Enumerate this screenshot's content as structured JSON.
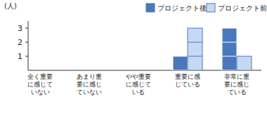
{
  "chart_data": {
    "type": "bar",
    "y_label": "(人)",
    "categories": [
      "全く重要に感じていない",
      "あまり重要に感じていない",
      "やや重要に感じている",
      "重要に感じている",
      "非常に重要に感じている"
    ],
    "series": [
      {
        "name": "プロジェクト後",
        "color": "#4a78bd",
        "values": [
          0,
          0,
          0,
          1,
          3
        ]
      },
      {
        "name": "プロジェクト前",
        "color": "#c5daf2",
        "values": [
          0,
          0,
          0,
          3,
          1
        ]
      }
    ],
    "ylim": [
      0,
      3.5
    ],
    "yticks": [
      1,
      2,
      3
    ],
    "grid": false,
    "legend": "top-right"
  }
}
